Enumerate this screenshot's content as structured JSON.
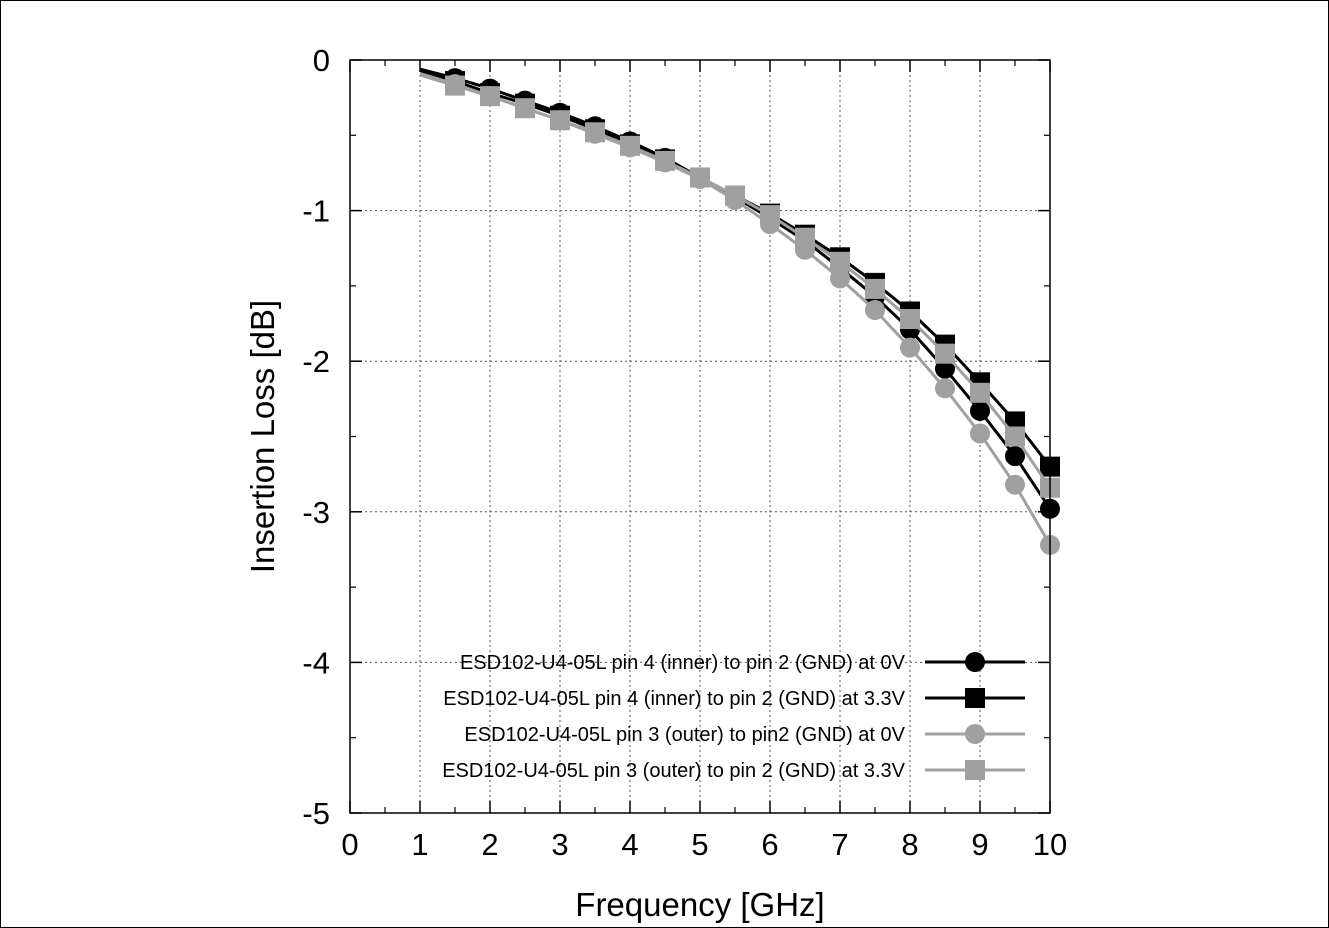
{
  "chart_data": {
    "type": "line",
    "title": "",
    "xlabel": "Frequency [GHz]",
    "ylabel": "Insertion Loss [dB]",
    "xlim": [
      0,
      10
    ],
    "ylim": [
      -5,
      0
    ],
    "xticks": [
      "0",
      "1",
      "2",
      "3",
      "4",
      "5",
      "6",
      "7",
      "8",
      "9",
      "10"
    ],
    "yticks": [
      "0",
      "-1",
      "-2",
      "-3",
      "-4",
      "-5"
    ],
    "grid": true,
    "legend_position": "bottom-right",
    "series": [
      {
        "name": "ESD102-U4-05L pin 4 (inner) to pin 2 (GND) at 0V",
        "color": "#000000",
        "marker": "circle",
        "x": [
          1,
          1.5,
          2,
          2.5,
          3,
          3.5,
          4,
          4.5,
          5,
          5.5,
          6,
          6.5,
          7,
          7.5,
          8,
          8.5,
          9,
          9.5,
          10
        ],
        "y": [
          -0.06,
          -0.12,
          -0.19,
          -0.27,
          -0.35,
          -0.44,
          -0.54,
          -0.65,
          -0.78,
          -0.91,
          -1.05,
          -1.2,
          -1.38,
          -1.57,
          -1.79,
          -2.05,
          -2.33,
          -2.63,
          -2.98
        ]
      },
      {
        "name": "ESD102-U4-05L pin 4 (inner) to pin 2 (GND) at 3.3V",
        "color": "#000000",
        "marker": "square",
        "x": [
          1,
          1.5,
          2,
          2.5,
          3,
          3.5,
          4,
          4.5,
          5,
          5.5,
          6,
          6.5,
          7,
          7.5,
          8,
          8.5,
          9,
          9.5,
          10
        ],
        "y": [
          -0.07,
          -0.14,
          -0.22,
          -0.29,
          -0.37,
          -0.46,
          -0.56,
          -0.66,
          -0.78,
          -0.9,
          -1.02,
          -1.16,
          -1.31,
          -1.48,
          -1.67,
          -1.89,
          -2.14,
          -2.4,
          -2.7
        ]
      },
      {
        "name": "ESD102-U4-05L pin 3 (outer) to pin2 (GND) at 0V",
        "color": "#a0a0a0",
        "marker": "circle",
        "x": [
          1,
          1.5,
          2,
          2.5,
          3,
          3.5,
          4,
          4.5,
          5,
          5.5,
          6,
          6.5,
          7,
          7.5,
          8,
          8.5,
          9,
          9.5,
          10
        ],
        "y": [
          -0.09,
          -0.16,
          -0.24,
          -0.32,
          -0.4,
          -0.49,
          -0.58,
          -0.68,
          -0.79,
          -0.93,
          -1.09,
          -1.26,
          -1.45,
          -1.66,
          -1.91,
          -2.18,
          -2.48,
          -2.82,
          -3.22
        ]
      },
      {
        "name": "ESD102-U4-05L pin 3 (outer) to pin 2 (GND) at 3.3V",
        "color": "#a0a0a0",
        "marker": "square",
        "x": [
          1,
          1.5,
          2,
          2.5,
          3,
          3.5,
          4,
          4.5,
          5,
          5.5,
          6,
          6.5,
          7,
          7.5,
          8,
          8.5,
          9,
          9.5,
          10
        ],
        "y": [
          -0.1,
          -0.17,
          -0.24,
          -0.32,
          -0.4,
          -0.48,
          -0.57,
          -0.67,
          -0.78,
          -0.9,
          -1.03,
          -1.18,
          -1.34,
          -1.52,
          -1.72,
          -1.95,
          -2.21,
          -2.5,
          -2.84
        ]
      }
    ]
  }
}
